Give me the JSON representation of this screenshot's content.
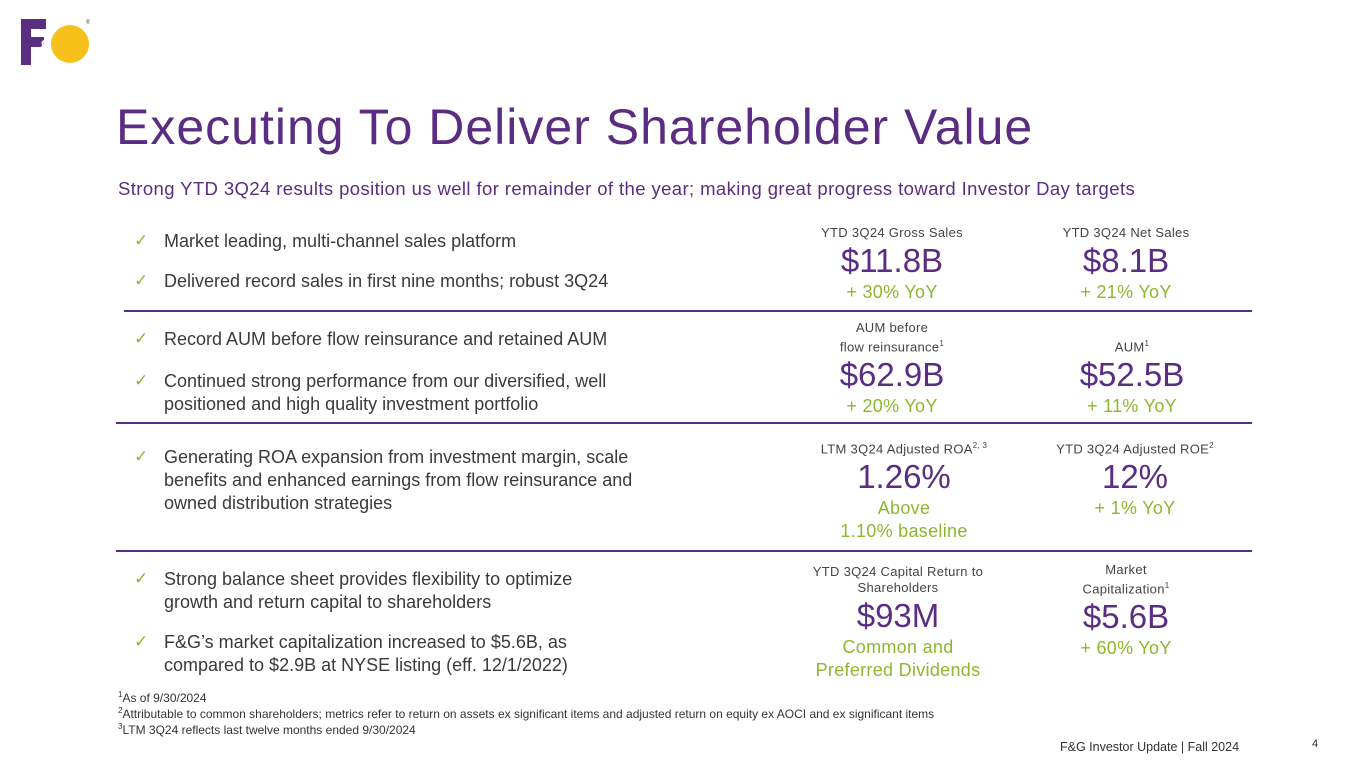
{
  "logo": {
    "text": "F&G",
    "colors": {
      "f": "#5b2d82",
      "g": "#f5c11a"
    }
  },
  "title": "Executing To Deliver Shareholder Value",
  "subtitle": "Strong YTD 3Q24 results position us well for remainder of the year; making great progress toward Investor Day targets",
  "bullets": [
    "Market leading, multi-channel sales platform",
    "Delivered record sales in first nine months; robust 3Q24",
    "Record AUM before flow reinsurance and retained AUM",
    "Continued strong performance from our diversified, well positioned and high quality investment portfolio",
    "Generating ROA expansion from investment margin, scale benefits and enhanced earnings from flow reinsurance and owned distribution strategies",
    "Strong balance sheet provides flexibility to optimize growth and return capital to shareholders",
    "F&G’s market capitalization increased to $5.6B, as compared to $2.9B at NYSE listing (eff. 12/1/2022)"
  ],
  "metrics": {
    "gross_sales": {
      "label": "YTD 3Q24 Gross Sales",
      "value": "$11.8B",
      "change": "+ 30% YoY"
    },
    "net_sales": {
      "label": "YTD 3Q24 Net Sales",
      "value": "$8.1B",
      "change": "+ 21% YoY"
    },
    "aum_before": {
      "label_line1": "AUM before",
      "label_line2": "flow reinsurance",
      "sup": "1",
      "value": "$62.9B",
      "change": "+ 20% YoY"
    },
    "aum": {
      "label": "AUM",
      "sup": "1",
      "value": "$52.5B",
      "change": "+ 11% YoY"
    },
    "roa": {
      "label": "LTM 3Q24 Adjusted ROA",
      "sup": "2, 3",
      "value": "1.26%",
      "change_line1": "Above",
      "change_line2": "1.10% baseline"
    },
    "roe": {
      "label": "YTD 3Q24 Adjusted ROE",
      "sup": "2",
      "value": "12%",
      "change": "+ 1% YoY"
    },
    "capital_return": {
      "label_line1": "YTD 3Q24 Capital Return to",
      "label_line2": "Shareholders",
      "value": "$93M",
      "change_line1": "Common and",
      "change_line2": "Preferred Dividends"
    },
    "market_cap": {
      "label_line1": "Market",
      "label_line2": "Capitalization",
      "sup": "1",
      "value": "$5.6B",
      "change": "+ 60% YoY"
    }
  },
  "footnotes": [
    {
      "num": "1",
      "text": "As of 9/30/2024"
    },
    {
      "num": "2",
      "text": "Attributable to common shareholders; metrics refer to return on assets ex significant items and adjusted return on equity ex AOCI and ex significant items"
    },
    {
      "num": "3",
      "text": "LTM 3Q24 reflects last twelve months ended 9/30/2024"
    }
  ],
  "footer": {
    "text": "F&G Investor Update | Fall 2024",
    "page": "4"
  },
  "colors": {
    "purple": "#5b2d82",
    "green": "#8db82e"
  }
}
